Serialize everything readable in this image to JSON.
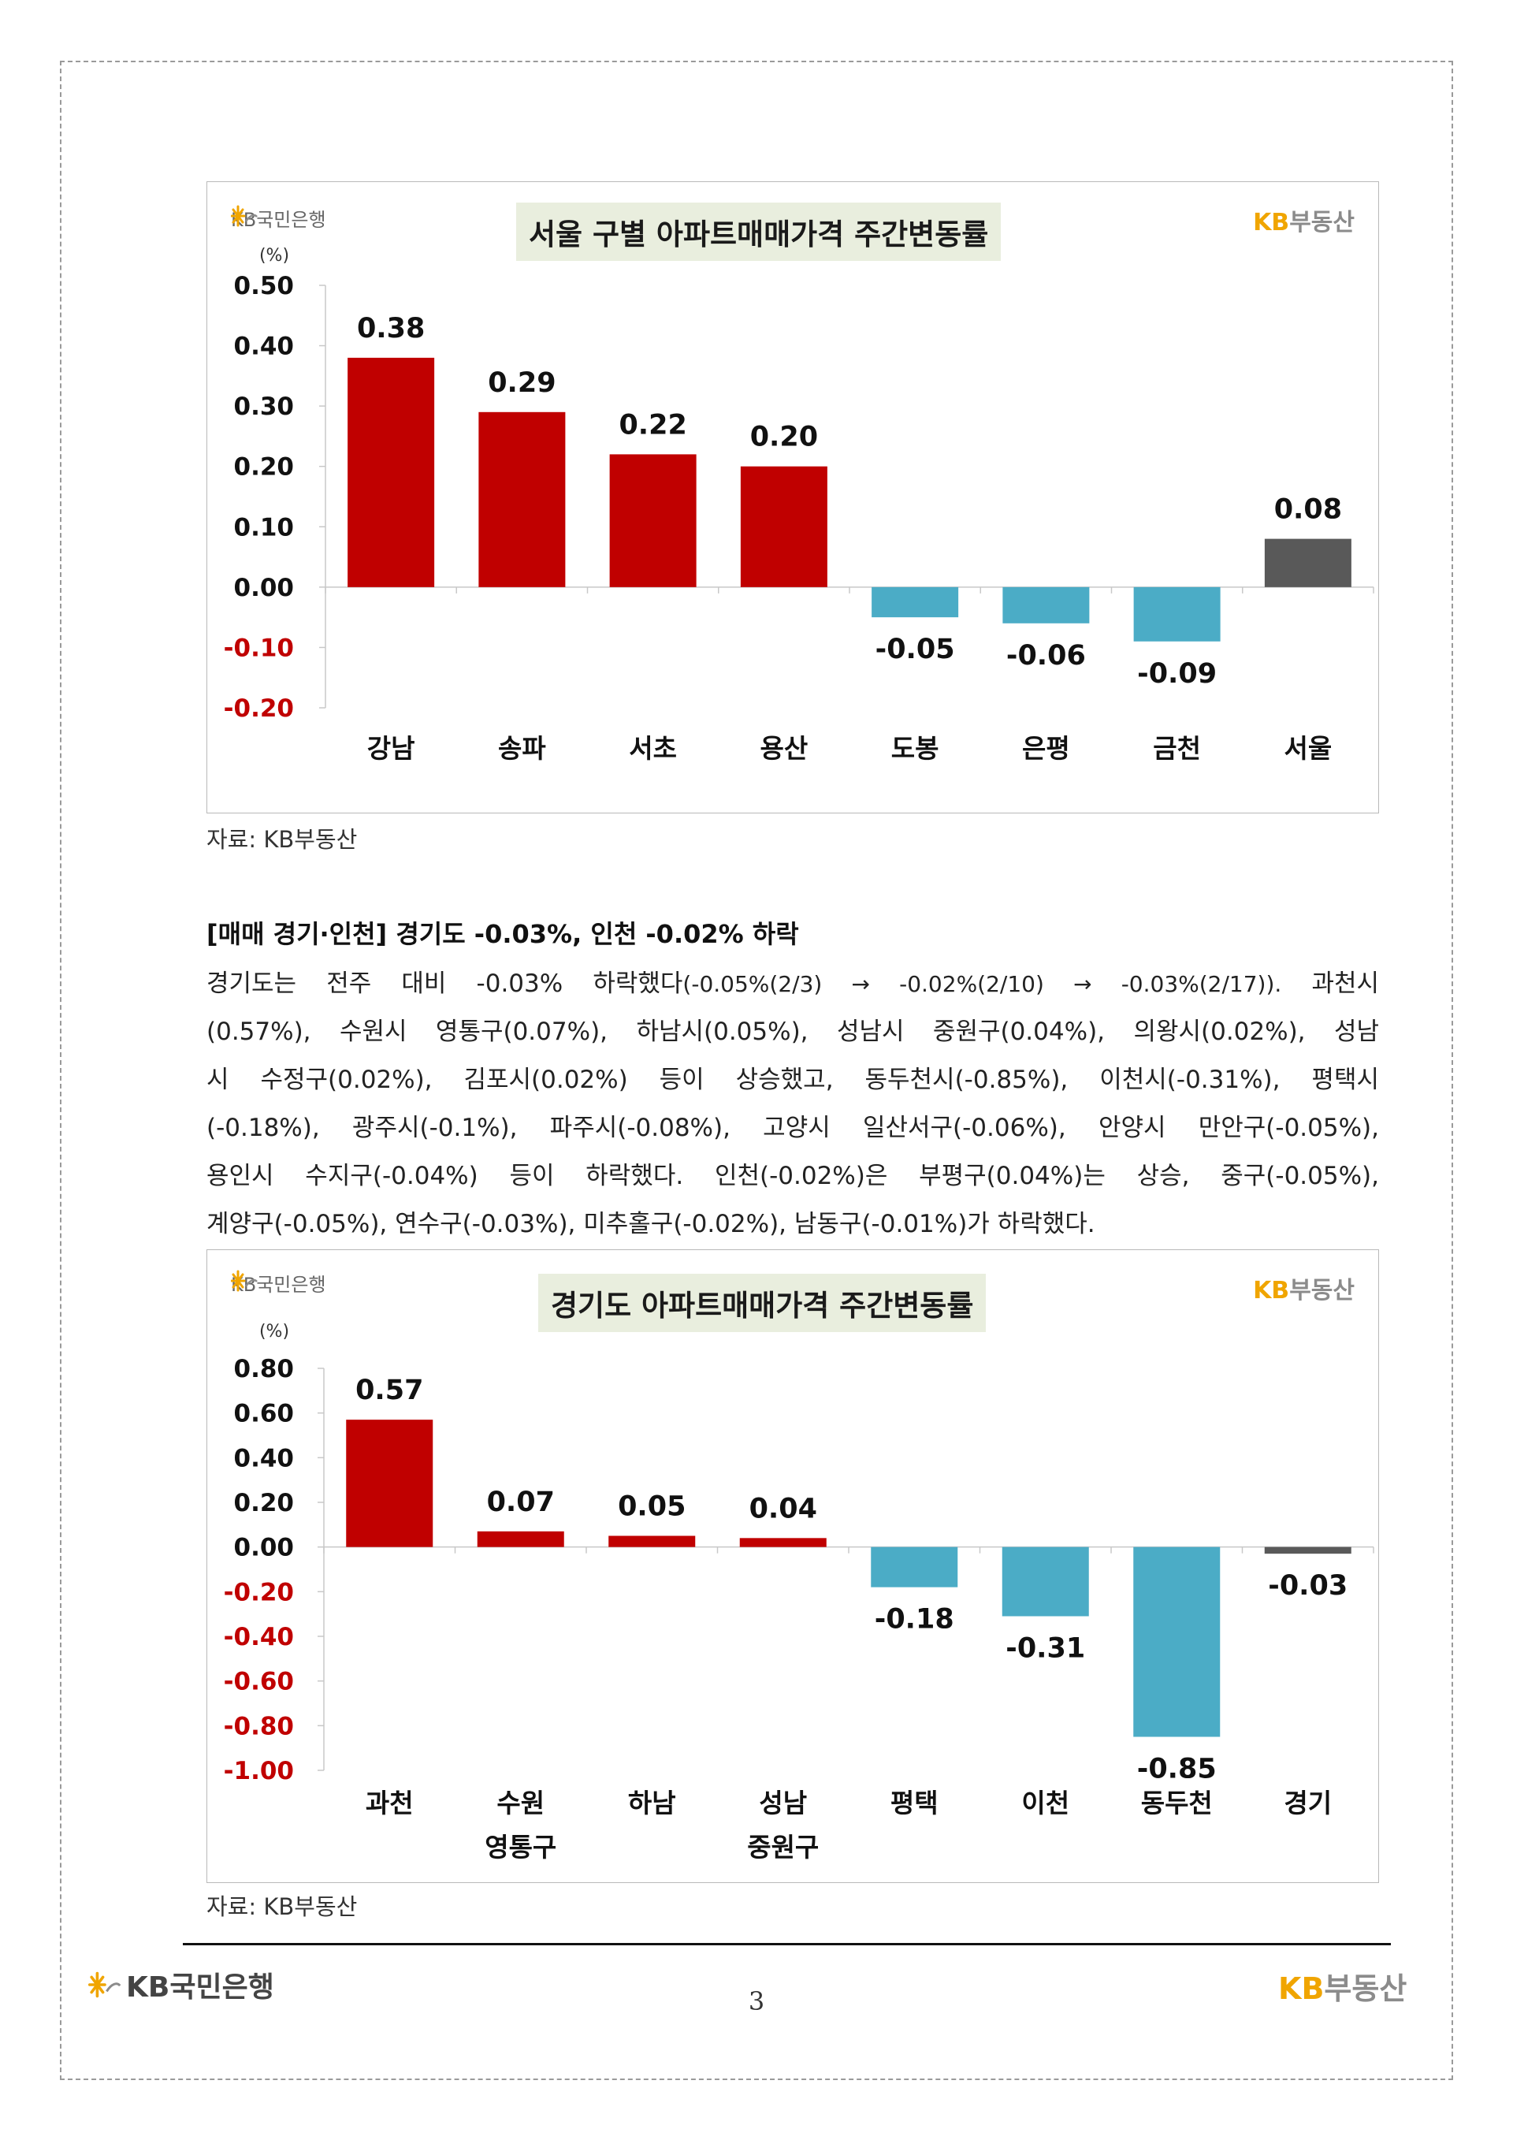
{
  "brand": {
    "bank": "KB국민은행",
    "estate_kb": "KB",
    "estate_rest": "부동산"
  },
  "colors": {
    "up": "#c00000",
    "down": "#4bacc6",
    "total": "#595959",
    "neg_axis": "#c00000",
    "title_bg": "#e9eede",
    "brand_gold": "#f0a500"
  },
  "chart_data": [
    {
      "type": "bar",
      "title": "서울 구별 아파트매매가격 주간변동률",
      "unit_label": "(%)",
      "categories": [
        [
          "강남"
        ],
        [
          "송파"
        ],
        [
          "서초"
        ],
        [
          "용산"
        ],
        [
          "도봉"
        ],
        [
          "은평"
        ],
        [
          "금천"
        ],
        [
          "서울"
        ]
      ],
      "values": [
        0.38,
        0.29,
        0.22,
        0.2,
        -0.05,
        -0.06,
        -0.09,
        0.08
      ],
      "value_labels": [
        "0.38",
        "0.29",
        "0.22",
        "0.20",
        "-0.05",
        "-0.06",
        "-0.09",
        "0.08"
      ],
      "ylim": [
        -0.2,
        0.5
      ],
      "yticks": [
        0.5,
        0.4,
        0.3,
        0.2,
        0.1,
        0.0,
        -0.1,
        -0.2
      ],
      "ytick_labels": [
        "0.50",
        "0.40",
        "0.30",
        "0.20",
        "0.10",
        "0.00",
        "-0.10",
        "-0.20"
      ],
      "total_index": 7,
      "source": "자료: KB부동산"
    },
    {
      "type": "bar",
      "title": "경기도 아파트매매가격 주간변동률",
      "unit_label": "(%)",
      "categories": [
        [
          "과천"
        ],
        [
          "수원",
          "영통구"
        ],
        [
          "하남"
        ],
        [
          "성남",
          "중원구"
        ],
        [
          "평택"
        ],
        [
          "이천"
        ],
        [
          "동두천"
        ],
        [
          "경기"
        ]
      ],
      "values": [
        0.57,
        0.07,
        0.05,
        0.04,
        -0.18,
        -0.31,
        -0.85,
        -0.03
      ],
      "value_labels": [
        "0.57",
        "0.07",
        "0.05",
        "0.04",
        "-0.18",
        "-0.31",
        "-0.85",
        "-0.03"
      ],
      "ylim": [
        -1.0,
        0.8
      ],
      "yticks": [
        0.8,
        0.6,
        0.4,
        0.2,
        0.0,
        -0.2,
        -0.4,
        -0.6,
        -0.8,
        -1.0
      ],
      "ytick_labels": [
        "0.80",
        "0.60",
        "0.40",
        "0.20",
        "0.00",
        "-0.20",
        "-0.40",
        "-0.60",
        "-0.80",
        "-1.00"
      ],
      "total_index": 7,
      "source": "자료: KB부동산"
    }
  ],
  "section": {
    "heading": "[매매 경기·인천] 경기도 -0.03%, 인천 -0.02% 하락",
    "lines": [
      {
        "a": "경기도는 전주 대비 -0.03% 하락했다",
        "b": "(-0.05%(2/3) → -0.02%(2/10) → -0.03%(2/17)).",
        "c": " 과천시"
      },
      {
        "a": "(0.57%), 수원시 영통구(0.07%), 하남시(0.05%), 성남시 중원구(0.04%), 의왕시(0.02%), 성남"
      },
      {
        "a": "시 수정구(0.02%), 김포시(0.02%) 등이 상승했고, 동두천시(-0.85%), 이천시(-0.31%), 평택시"
      },
      {
        "a": "(-0.18%), 광주시(-0.1%), 파주시(-0.08%), 고양시 일산서구(-0.06%), 안양시 만안구(-0.05%),"
      },
      {
        "a": "용인시 수지구(-0.04%) 등이 하락했다. 인천(-0.02%)은 부평구(0.04%)는 상승, 중구(-0.05%),"
      },
      {
        "a": "계양구(-0.05%), 연수구(-0.03%), 미추홀구(-0.02%), 남동구(-0.01%)가 하락했다."
      }
    ]
  },
  "footer": {
    "page_number": "3"
  }
}
